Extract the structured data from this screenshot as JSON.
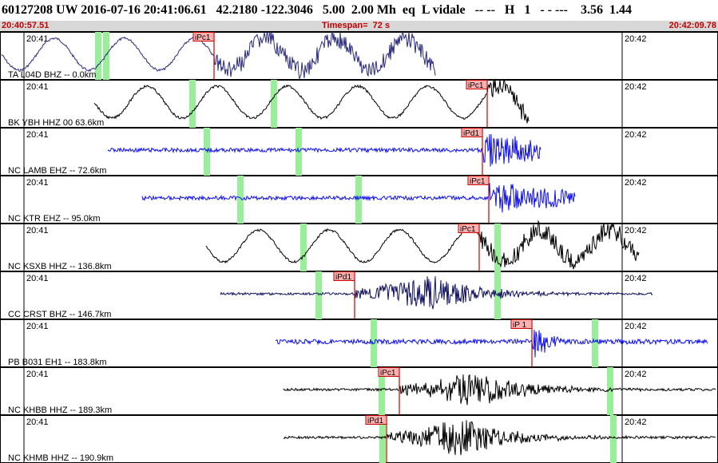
{
  "header": {
    "title": "60127208 UW 2016-07-16 20:41:06.61   42.2180 -122.3046   5.00  2.00 Mh  eq  L vidale   -- --   H   1   - - ---    3.56  1.44",
    "start_time": "20:40:57.51",
    "timespan": "Timespan=  72 s",
    "end_time": "20:42:09.78"
  },
  "tick_labels": {
    "left": "20:41",
    "right": "20:42"
  },
  "colors": {
    "pick_line": "#cc0000",
    "pick_box": "#ffb0b0",
    "marker": "#99ee99",
    "dark": "#000033",
    "blue": "#1010ee",
    "black": "#000000"
  },
  "traces": [
    {
      "label": "TA L04D BHZ -- 0.0km",
      "pick": "iPc1",
      "color": "#2a2a80",
      "style": "sine"
    },
    {
      "label": "BK YBH HHZ 00 63.6km",
      "pick": "iPc1",
      "color": "#000000",
      "style": "sine"
    },
    {
      "label": "NC LAMB EHZ -- 72.6km",
      "pick": "iPd1",
      "color": "#1010ee",
      "style": "noise"
    },
    {
      "label": "NC KTR EHZ -- 95.0km",
      "pick": "iPc1",
      "color": "#1010ee",
      "style": "noise"
    },
    {
      "label": "NC KSXB HHZ -- 136.8km",
      "pick": "iPc1",
      "color": "#000000",
      "style": "sine"
    },
    {
      "label": "CC CRST BHZ -- 146.7km",
      "pick": "iPd1",
      "color": "#101060",
      "style": "quake"
    },
    {
      "label": "PB B031 EH1 -- 183.8km",
      "pick": "iP 1",
      "color": "#1010ee",
      "style": "spike"
    },
    {
      "label": "NC KHBB HHZ -- 189.3km",
      "pick": "iPc1",
      "color": "#000000",
      "style": "quake"
    },
    {
      "label": "NC KHMB HHZ -- 190.9km",
      "pick": "iPd1",
      "color": "#000000",
      "style": "quake"
    }
  ]
}
